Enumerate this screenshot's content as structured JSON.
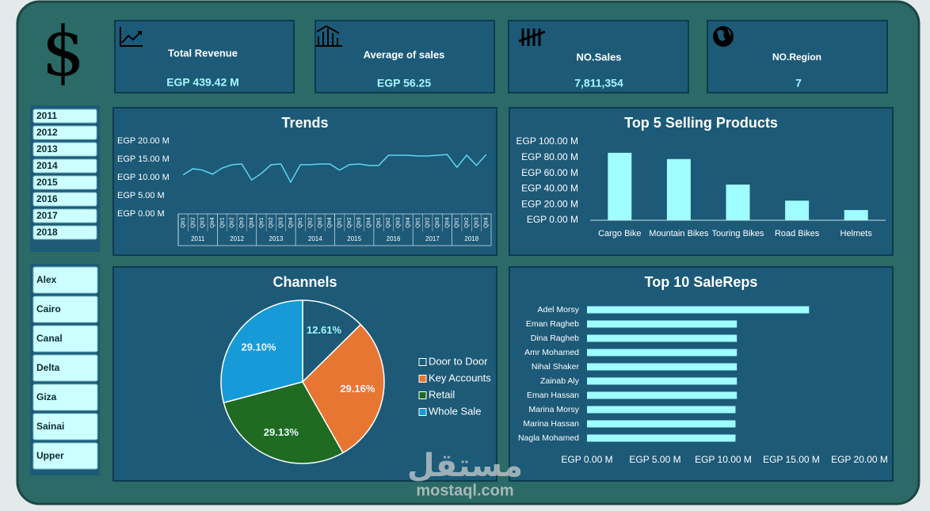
{
  "logo": "$",
  "kpis": [
    {
      "title": "Total Revenue",
      "value": "EGP 439.42 M"
    },
    {
      "title": "Average of sales",
      "value": "EGP 56.25"
    },
    {
      "title": "NO.Sales",
      "value": "7,811,354"
    },
    {
      "title": "NO.Region",
      "value": "7"
    }
  ],
  "year_slicer": [
    "2011",
    "2012",
    "2013",
    "2014",
    "2015",
    "2016",
    "2017",
    "2018"
  ],
  "region_slicer": [
    "Alex",
    "Cairo",
    "Canal",
    "Delta",
    "Giza",
    "Sainai",
    "Upper"
  ],
  "chart_data": [
    {
      "type": "line",
      "title": "Trends",
      "categories": [
        "Qtr1",
        "Qtr2",
        "Qtr3",
        "Qtr4",
        "Qtr1",
        "Qtr2",
        "Qtr3",
        "Qtr4",
        "Qtr1",
        "Qtr2",
        "Qtr3",
        "Qtr4",
        "Qtr1",
        "Qtr2",
        "Qtr3",
        "Qtr4",
        "Qtr1",
        "Qtr2",
        "Qtr3",
        "Qtr4",
        "Qtr1",
        "Qtr2",
        "Qtr3",
        "Qtr4",
        "Qtr1",
        "Qtr2",
        "Qtr3",
        "Qtr4",
        "Qtr1",
        "Qtr2",
        "Qtr3",
        "Qtr4"
      ],
      "category_groups": [
        "2011",
        "2012",
        "2013",
        "2014",
        "2015",
        "2016",
        "2017",
        "2018"
      ],
      "values": [
        10.7,
        12.4,
        12.0,
        10.9,
        12.6,
        13.5,
        13.7,
        9.3,
        11.1,
        13.5,
        13.7,
        8.7,
        13.5,
        13.5,
        13.7,
        13.7,
        12.0,
        13.5,
        13.7,
        13.3,
        13.3,
        16.1,
        16.1,
        16.1,
        15.9,
        15.9,
        16.1,
        16.3,
        12.8,
        16.1,
        13.3,
        16.3
      ],
      "color": "#5fd6f2",
      "ylim": [
        0,
        20
      ],
      "yticks": [
        {
          "value": 0,
          "label": "EGP 0.00 M"
        },
        {
          "value": 5,
          "label": "EGP 5.00 M"
        },
        {
          "value": 10,
          "label": "EGP 10.00 M"
        },
        {
          "value": 15,
          "label": "EGP 15.00 M"
        },
        {
          "value": 20,
          "label": "EGP 20.00 M"
        }
      ]
    },
    {
      "type": "bar",
      "title": "Top 5 Selling Products",
      "categories": [
        "Cargo Bike",
        "Mountain Bikes",
        "Touring Bikes",
        "Road Bikes",
        "Helmets"
      ],
      "values": [
        86,
        78,
        45.5,
        25,
        13
      ],
      "color": "#9ffcff",
      "ylim": [
        0,
        100
      ],
      "yticks": [
        {
          "value": 0,
          "label": "EGP 0.00 M"
        },
        {
          "value": 20,
          "label": "EGP 20.00 M"
        },
        {
          "value": 40,
          "label": "EGP 40.00 M"
        },
        {
          "value": 60,
          "label": "EGP 60.00 M"
        },
        {
          "value": 80,
          "label": "EGP 80.00 M"
        },
        {
          "value": 100,
          "label": "EGP 100.00 M"
        }
      ]
    },
    {
      "type": "pie",
      "title": "Channels",
      "categories": [
        "Door to Door",
        "Key Accounts",
        "Retail",
        "Whole Sale"
      ],
      "values": [
        12.61,
        29.16,
        29.13,
        29.1
      ],
      "value_labels": [
        "12.61%",
        "29.16%",
        "29.13%",
        "29.10%"
      ],
      "colors": [
        "#1c5a78",
        "#e87633",
        "#1f6b22",
        "#179ad8"
      ],
      "legend": "right"
    },
    {
      "type": "bar",
      "orientation": "horizontal",
      "title": "Top 10 SaleReps",
      "categories": [
        "Adel Morsy",
        "Eman Ragheb",
        "Dina Ragheb",
        "Amr Mohamed",
        "Nihal Shaker",
        "Zainab Aly",
        "Eman Hassan",
        "Marina Morsy",
        "Marina Hassan",
        "Nagla Mohamed"
      ],
      "values": [
        16.3,
        11.0,
        11.0,
        11.0,
        11.0,
        11.0,
        11.0,
        10.9,
        10.9,
        10.9
      ],
      "color": "#9ffcff",
      "xlim": [
        0,
        20
      ],
      "xticks": [
        {
          "value": 0,
          "label": "EGP 0.00 M"
        },
        {
          "value": 5,
          "label": "EGP 5.00 M"
        },
        {
          "value": 10,
          "label": "EGP 10.00 M"
        },
        {
          "value": 15,
          "label": "EGP 15.00 M"
        },
        {
          "value": 20,
          "label": "EGP 20.00 M"
        }
      ]
    }
  ],
  "watermark": {
    "arabic": "مستقل",
    "latin": "mostaql.com"
  }
}
